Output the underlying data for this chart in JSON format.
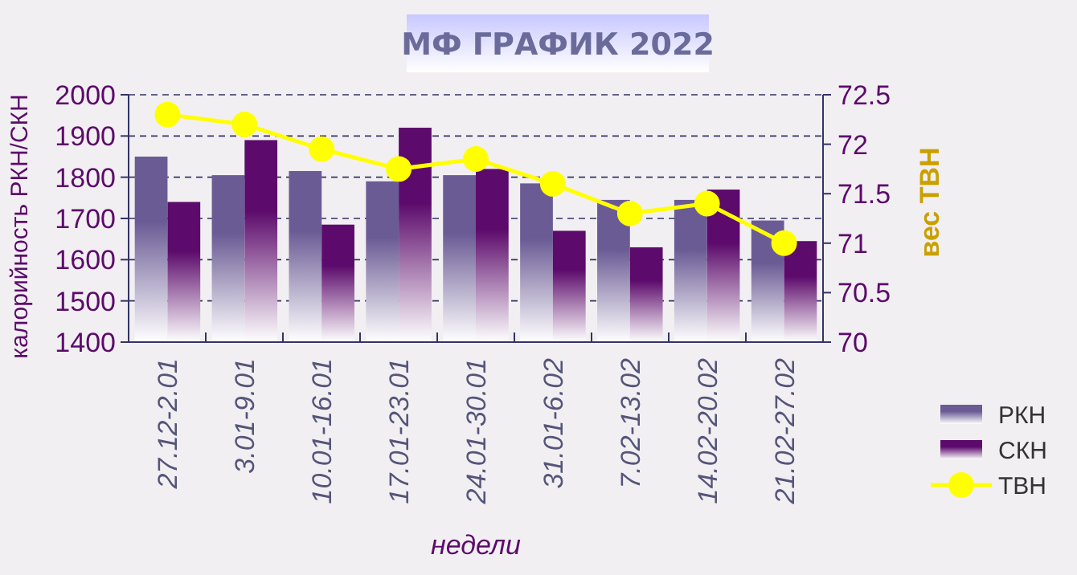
{
  "chart_data": {
    "type": "bar",
    "title": "МФ ГРАФИК 2022",
    "xlabel": "недели",
    "ylabel": "калорийность РКН/СКН",
    "y2label": "вес ТВН",
    "categories": [
      "27.12-2.01",
      "3.01-9.01",
      "10.01-16.01",
      "17.01-23.01",
      "24.01-30.01",
      "31.01-6.02",
      "7.02-13.02",
      "14.02-20.02",
      "21.02-27.02"
    ],
    "series": [
      {
        "name": "РКН",
        "color": "#6b5b95",
        "values": [
          1850,
          1805,
          1815,
          1790,
          1805,
          1785,
          1745,
          1745,
          1695
        ]
      },
      {
        "name": "СКН",
        "color": "#5c0a6b",
        "values": [
          1740,
          1890,
          1685,
          1920,
          1820,
          1670,
          1630,
          1770,
          1645
        ]
      },
      {
        "name": "ТВН",
        "type": "line",
        "axis": "y2",
        "color": "#ffff00",
        "values": [
          72.3,
          72.2,
          71.95,
          71.75,
          71.85,
          71.6,
          71.3,
          71.4,
          71.0
        ]
      }
    ],
    "ylim": [
      1400,
      2000
    ],
    "yticks": [
      1400,
      1500,
      1600,
      1700,
      1800,
      1900,
      2000
    ],
    "y2lim": [
      70,
      72.5
    ],
    "y2ticks": [
      70,
      70.5,
      71,
      71.5,
      72,
      72.5
    ],
    "grid": "y",
    "legend": "bottom right",
    "marker": "circle",
    "line_style": "solid"
  }
}
